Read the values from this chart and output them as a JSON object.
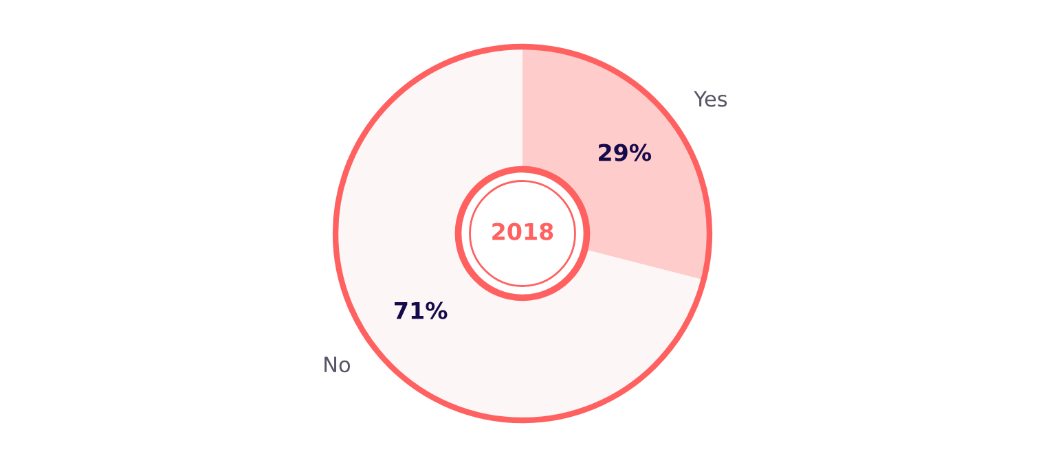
{
  "chart_data": {
    "type": "donut",
    "categories": [
      "Yes",
      "No"
    ],
    "values": [
      29,
      71
    ],
    "colors": [
      "#ffcccc",
      "#fdf6f6"
    ],
    "value_labels": [
      "29%",
      "71%"
    ],
    "annotations": [
      "2018"
    ],
    "legend": false
  }
}
